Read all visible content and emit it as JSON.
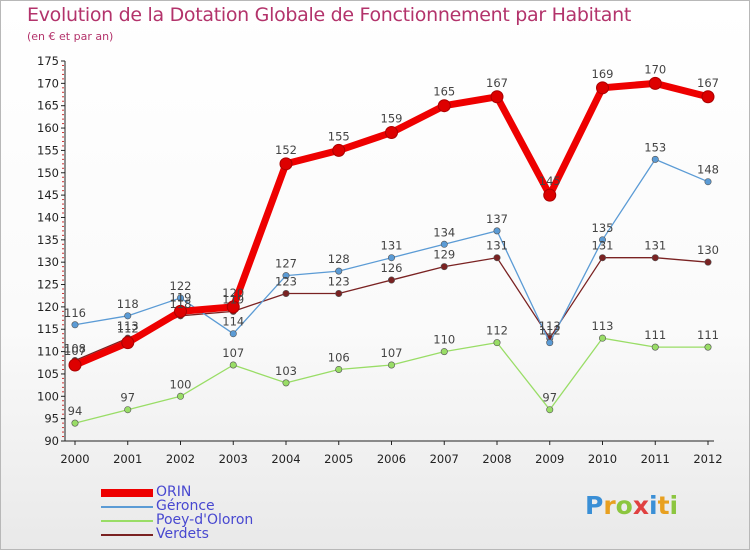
{
  "header": {
    "title": "Evolution de la Dotation Globale de Fonctionnement par Habitant",
    "subtitle": "(en € et par an)"
  },
  "logo": {
    "letters": [
      "P",
      "r",
      "o",
      "x",
      "i",
      "t",
      "i"
    ],
    "colors": [
      "#3a8fd6",
      "#e8a020",
      "#8cc63f",
      "#e04040",
      "#3a8fd6",
      "#e8a020",
      "#8cc63f"
    ]
  },
  "chart_data": {
    "type": "line",
    "title": "Evolution de la Dotation Globale de Fonctionnement par Habitant",
    "subtitle": "(en € et par an)",
    "xlabel": "",
    "ylabel": "",
    "ylim": [
      90,
      175
    ],
    "yticks": [
      "90",
      "95",
      "100",
      "105",
      "110",
      "115",
      "120",
      "125",
      "130",
      "135",
      "140",
      "145",
      "150",
      "155",
      "160",
      "165",
      "170",
      "175"
    ],
    "categories": [
      "2000",
      "2001",
      "2002",
      "2003",
      "2004",
      "2005",
      "2006",
      "2007",
      "2008",
      "2009",
      "2010",
      "2011",
      "2012"
    ],
    "series": [
      {
        "name": "ORIN",
        "color": "#ee0000",
        "values": [
          107,
          112,
          119,
          120,
          152,
          155,
          159,
          165,
          167,
          145,
          169,
          170,
          167
        ],
        "labels": [
          "107",
          "112",
          "119",
          "120",
          "152",
          "155",
          "159",
          "165",
          "167",
          "145",
          "169",
          "170",
          "167"
        ]
      },
      {
        "name": "Géronce",
        "color": "#5b9bd5",
        "values": [
          116,
          118,
          122,
          114,
          127,
          128,
          131,
          134,
          137,
          112,
          135,
          153,
          148
        ],
        "labels": [
          "116",
          "118",
          "122",
          "114",
          "127",
          "128",
          "131",
          "134",
          "137",
          "112",
          "135",
          "153",
          "148"
        ]
      },
      {
        "name": "Poey-d'Oloron",
        "color": "#99dd66",
        "values": [
          94,
          97,
          100,
          107,
          103,
          106,
          107,
          110,
          112,
          97,
          113,
          111,
          111
        ],
        "labels": [
          "94",
          "97",
          "100",
          "107",
          "103",
          "106",
          "107",
          "110",
          "112",
          "97",
          "113",
          "111",
          "111"
        ]
      },
      {
        "name": "Verdets",
        "color": "#7a2222",
        "values": [
          108,
          113,
          118,
          119,
          123,
          123,
          126,
          129,
          131,
          113,
          131,
          131,
          130
        ],
        "labels": [
          "108",
          "113",
          "118",
          "119",
          "123",
          "123",
          "126",
          "129",
          "131",
          "113",
          "131",
          "131",
          "130"
        ]
      }
    ],
    "legend_position": "bottom-left",
    "grid": false
  }
}
